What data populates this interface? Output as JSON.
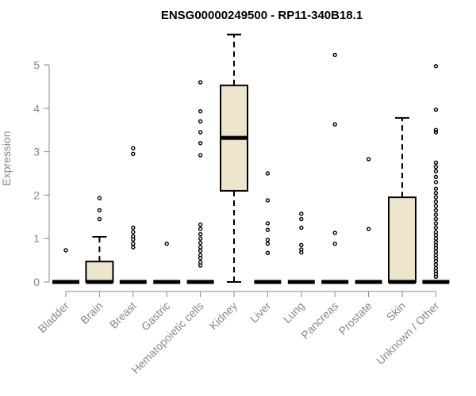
{
  "chart_data": {
    "type": "boxplot",
    "title": "ENSG00000249500 - RP11-340B18.1",
    "ylabel": "Expression",
    "xlabel": "",
    "ylim": [
      0,
      5.75
    ],
    "yticks": [
      0,
      1,
      2,
      3,
      4,
      5
    ],
    "box_fill": "#ede6cc",
    "categories": [
      "Bladder",
      "Brain",
      "Breast",
      "Gastric",
      "Hematopoietic cells",
      "Kidney",
      "Liver",
      "Lung",
      "Pancreas",
      "Prostate",
      "Skin",
      "Unknown / Other"
    ],
    "series": [
      {
        "q1": 0,
        "median": 0,
        "q3": 0,
        "whisker_low": 0,
        "whisker_high": 0,
        "outliers": [
          0.73
        ]
      },
      {
        "q1": 0,
        "median": 0,
        "q3": 0.47,
        "whisker_low": 0,
        "whisker_high": 1.04,
        "outliers": [
          1.45,
          1.65,
          1.93
        ]
      },
      {
        "q1": 0,
        "median": 0,
        "q3": 0,
        "whisker_low": 0,
        "whisker_high": 0,
        "outliers": [
          0.8,
          0.88,
          0.98,
          1.05,
          1.15,
          1.25,
          2.95,
          3.08
        ]
      },
      {
        "q1": 0,
        "median": 0,
        "q3": 0,
        "whisker_low": 0,
        "whisker_high": 0,
        "outliers": [
          0.88
        ]
      },
      {
        "q1": 0,
        "median": 0,
        "q3": 0,
        "whisker_low": 0,
        "whisker_high": 0,
        "outliers": [
          0.38,
          0.45,
          0.55,
          0.62,
          0.72,
          0.8,
          0.9,
          1.0,
          1.1,
          1.22,
          1.32,
          2.92,
          3.2,
          3.45,
          3.7,
          3.93,
          4.6
        ]
      },
      {
        "q1": 2.1,
        "median": 3.32,
        "q3": 4.53,
        "whisker_low": 0,
        "whisker_high": 5.7,
        "outliers": []
      },
      {
        "q1": 0,
        "median": 0,
        "q3": 0,
        "whisker_low": 0,
        "whisker_high": 0,
        "outliers": [
          0.67,
          0.88,
          0.97,
          1.2,
          1.35,
          1.88,
          2.5
        ]
      },
      {
        "q1": 0,
        "median": 0,
        "q3": 0,
        "whisker_low": 0,
        "whisker_high": 0,
        "outliers": [
          0.68,
          0.75,
          0.85,
          1.25,
          1.45,
          1.57
        ]
      },
      {
        "q1": 0,
        "median": 0,
        "q3": 0,
        "whisker_low": 0,
        "whisker_high": 0,
        "outliers": [
          0.88,
          1.13,
          3.63,
          5.23
        ]
      },
      {
        "q1": 0,
        "median": 0,
        "q3": 0,
        "whisker_low": 0,
        "whisker_high": 0,
        "outliers": [
          1.22,
          2.83
        ]
      },
      {
        "q1": 0,
        "median": 0,
        "q3": 1.95,
        "whisker_low": 0,
        "whisker_high": 3.78,
        "outliers": []
      },
      {
        "q1": 0,
        "median": 0,
        "q3": 0,
        "whisker_low": 0,
        "whisker_high": 0,
        "outliers": [
          0.12,
          0.18,
          0.25,
          0.32,
          0.4,
          0.48,
          0.55,
          0.62,
          0.7,
          0.78,
          0.85,
          0.92,
          1.0,
          1.08,
          1.15,
          1.25,
          1.35,
          1.45,
          1.55,
          1.65,
          1.75,
          1.85,
          1.95,
          2.05,
          2.15,
          2.3,
          2.42,
          2.55,
          2.65,
          2.75,
          3.45,
          3.5,
          3.97,
          4.97
        ]
      }
    ]
  }
}
